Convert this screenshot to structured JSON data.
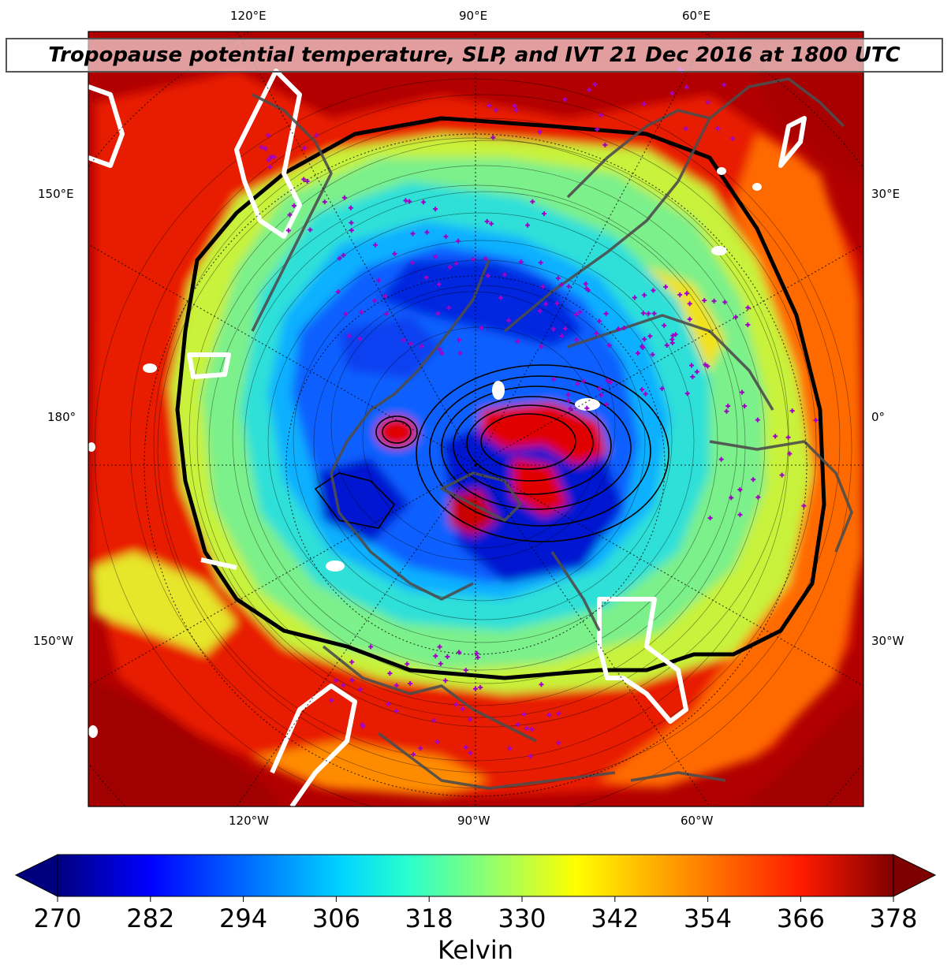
{
  "title": "Tropopause potential temperature, SLP, and IVT 21 Dec 2016 at 1800 UTC",
  "map": {
    "projection": "north-polar-stereographic",
    "top_lon_labels": [
      "120°E",
      "90°E",
      "60°E"
    ],
    "bottom_lon_labels": [
      "120°W",
      "90°W",
      "60°W"
    ],
    "left_lon_labels": [
      "150°E",
      "180°",
      "150°W"
    ],
    "right_lon_labels": [
      "30°E",
      "0°",
      "30°W"
    ]
  },
  "colorbar": {
    "label": "Kelvin",
    "ticks": [
      "270",
      "282",
      "294",
      "306",
      "318",
      "330",
      "342",
      "354",
      "366",
      "378"
    ],
    "min": 270,
    "max": 378,
    "extend": "both",
    "colormap": "jet",
    "colors": [
      "#00007f",
      "#0000ff",
      "#007fff",
      "#00ffff",
      "#7fff7f",
      "#ffff00",
      "#ff7f00",
      "#ff0000",
      "#7f0000"
    ]
  },
  "overlays": {
    "slp_contour_color": "#000000",
    "ivt_contour_color": "#ffffff",
    "coastline_color": "#4d4d4d",
    "station_marker_color": "#a100c8"
  }
}
